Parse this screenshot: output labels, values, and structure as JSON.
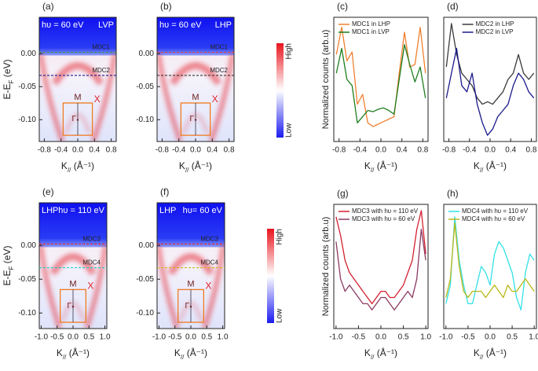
{
  "chart_data": [
    {
      "type": "heatmap",
      "panel": "(a)",
      "photon": "hυ = 60 eV",
      "polarization": "LVP",
      "xlabel": {
        "main": "K",
        "sub": "//",
        "unit": " (Å⁻¹)"
      },
      "ylabel": {
        "main": "E-E",
        "sub": "F",
        "unit": " (eV)"
      },
      "xlim": [
        -0.92,
        0.92
      ],
      "xticks": [
        -0.8,
        -0.4,
        {
          "value": 0,
          "label": "0.0"
        },
        0.4,
        0.8
      ],
      "ylim": [
        -0.133,
        0.055
      ],
      "yticks": [
        {
          "value": 0,
          "label": "0.00"
        },
        -0.05,
        {
          "value": -0.1,
          "label": "-0.10"
        }
      ],
      "cuts": [
        {
          "label": "MDC1",
          "value": 0.002,
          "color": "#3a9a3a"
        },
        {
          "label": "MDC2",
          "value": -0.033,
          "color": "#1a1a8c"
        }
      ],
      "symbols": [
        "M",
        "X",
        "Γ"
      ]
    },
    {
      "type": "heatmap",
      "panel": "(b)",
      "photon": "hυ = 60 eV",
      "polarization": "LHP",
      "xlabel": {
        "main": "K",
        "sub": "//",
        "unit": " (Å⁻¹)"
      },
      "xlim": [
        -0.92,
        0.92
      ],
      "xticks": [
        -0.8,
        -0.4,
        {
          "value": 0,
          "label": "0.0"
        },
        0.4,
        0.8
      ],
      "ylim": [
        -0.133,
        0.055
      ],
      "yticks": [
        {
          "value": 0,
          "label": "0.00"
        },
        -0.05,
        {
          "value": -0.1,
          "label": "-0.10"
        }
      ],
      "cuts": [
        {
          "label": "MDC1",
          "value": 0.002,
          "color": "#e04040"
        },
        {
          "label": "MDC2",
          "value": -0.033,
          "color": "#333333"
        }
      ],
      "symbols": [
        "M",
        "X",
        "Γ"
      ],
      "colorbar": [
        "High",
        "Low"
      ]
    },
    {
      "type": "line",
      "panel": "(c)",
      "xlabel": {
        "main": "K",
        "sub": "//",
        "unit": " (Å⁻¹)"
      },
      "ylabel": "Normalized counts (arb.u)",
      "xlim": [
        -0.9,
        0.9
      ],
      "xticks": [
        -0.8,
        -0.4,
        {
          "value": 0,
          "label": "0.0"
        },
        0.4,
        0.8
      ],
      "ylim": [
        0,
        1
      ],
      "legend": "upper left",
      "x": [
        -0.85,
        -0.75,
        -0.65,
        -0.55,
        -0.45,
        -0.35,
        -0.25,
        -0.15,
        -0.05,
        0.05,
        0.15,
        0.25,
        0.35,
        0.45,
        0.55,
        0.65,
        0.75,
        0.85
      ],
      "series": [
        {
          "name": "MDC1 in LHP",
          "color": "#f08030",
          "values": [
            0.7,
            0.92,
            0.65,
            0.72,
            0.3,
            0.38,
            0.15,
            0.12,
            0.14,
            0.16,
            0.18,
            0.2,
            0.55,
            0.88,
            0.6,
            0.62,
            0.92,
            0.55
          ]
        },
        {
          "name": "MDC1 in LVP",
          "color": "#1e7d1e",
          "values": [
            0.55,
            0.75,
            0.5,
            0.45,
            0.15,
            0.2,
            0.25,
            0.24,
            0.26,
            0.27,
            0.25,
            0.22,
            0.5,
            0.78,
            0.62,
            0.48,
            0.6,
            0.35
          ]
        }
      ]
    },
    {
      "type": "line",
      "panel": "(d)",
      "xlabel": {
        "main": "K",
        "sub": "//",
        "unit": " (Å⁻¹)"
      },
      "xlim": [
        -0.9,
        0.9
      ],
      "xticks": [
        -0.8,
        -0.4,
        {
          "value": 0,
          "label": "0.0"
        },
        0.4,
        0.8
      ],
      "ylim": [
        0,
        1
      ],
      "legend": "upper center",
      "x": [
        -0.85,
        -0.75,
        -0.65,
        -0.55,
        -0.45,
        -0.35,
        -0.25,
        -0.15,
        -0.05,
        0.05,
        0.15,
        0.25,
        0.35,
        0.45,
        0.55,
        0.65,
        0.75,
        0.85
      ],
      "series": [
        {
          "name": "MDC2 in LHP",
          "color": "#3a3a3a",
          "values": [
            0.6,
            0.95,
            0.7,
            0.55,
            0.5,
            0.45,
            0.35,
            0.3,
            0.32,
            0.3,
            0.35,
            0.4,
            0.5,
            0.55,
            0.7,
            0.55,
            0.5,
            0.55
          ]
        },
        {
          "name": "MDC2 in LVP",
          "color": "#1a1a8c",
          "values": [
            0.35,
            0.55,
            0.75,
            0.45,
            0.4,
            0.55,
            0.3,
            0.15,
            0.05,
            0.1,
            0.2,
            0.25,
            0.3,
            0.45,
            0.55,
            0.5,
            0.4,
            0.35
          ]
        }
      ]
    },
    {
      "type": "heatmap",
      "panel": "(e)",
      "photon": "hυ = 110 eV",
      "polarization": "LHP",
      "xlabel": {
        "main": "K",
        "sub": "//",
        "unit": " (Å⁻¹)"
      },
      "ylabel": {
        "main": "E-E",
        "sub": "F",
        "unit": " (eV)"
      },
      "xlim": [
        -1.06,
        1.06
      ],
      "xticks": [
        {
          "value": -1,
          "label": "-1.0"
        },
        -0.5,
        {
          "value": 0,
          "label": "0.0"
        },
        0.5,
        {
          "value": 1,
          "label": "1.0"
        }
      ],
      "ylim": [
        -0.123,
        0.063
      ],
      "yticks": [
        {
          "value": 0,
          "label": "0.00"
        },
        -0.05,
        {
          "value": -0.1,
          "label": "-0.10"
        }
      ],
      "cuts": [
        {
          "label": "MDC3",
          "value": 0.002,
          "color": "#e03030"
        },
        {
          "label": "MDC4",
          "value": -0.033,
          "color": "#22cccc"
        }
      ],
      "symbols": [
        "M",
        "X",
        "Γ"
      ]
    },
    {
      "type": "heatmap",
      "panel": "(f)",
      "photon": "hυ= 60 eV",
      "polarization": "LHP",
      "xlabel": {
        "main": "K",
        "sub": "//",
        "unit": " (Å⁻¹)"
      },
      "xlim": [
        -1.06,
        1.06
      ],
      "xticks": [
        {
          "value": -1,
          "label": "-1.0"
        },
        -0.5,
        {
          "value": 0,
          "label": "0.0"
        },
        0.5,
        {
          "value": 1,
          "label": "1.0"
        }
      ],
      "ylim": [
        -0.123,
        0.063
      ],
      "yticks": [
        {
          "value": 0,
          "label": "0.00"
        },
        -0.05,
        {
          "value": -0.1,
          "label": "-0.10"
        }
      ],
      "cuts": [
        {
          "label": "MDC3",
          "value": 0.002,
          "color": "#e03030"
        },
        {
          "label": "MDC4",
          "value": -0.033,
          "color": "#c8b820"
        }
      ],
      "symbols": [
        "M",
        "X",
        "Γ"
      ],
      "colorbar": [
        "High",
        "Low"
      ]
    },
    {
      "type": "line",
      "panel": "(g)",
      "xlabel": {
        "main": "K",
        "sub": "//",
        "unit": " (Å⁻¹)"
      },
      "ylabel": "Normalized counts (arb.u)",
      "xlim": [
        -1.05,
        1.05
      ],
      "xticks": [
        {
          "value": -1,
          "label": "-1.0"
        },
        -0.5,
        {
          "value": 0,
          "label": "0.0"
        },
        0.5,
        {
          "value": 1,
          "label": "1.0"
        }
      ],
      "ylim": [
        0,
        1
      ],
      "legend": "upper left",
      "x": [
        -1.0,
        -0.9,
        -0.8,
        -0.7,
        -0.6,
        -0.5,
        -0.4,
        -0.3,
        -0.2,
        -0.1,
        0,
        0.1,
        0.2,
        0.3,
        0.4,
        0.5,
        0.6,
        0.7,
        0.8,
        0.9,
        1.0
      ],
      "series": [
        {
          "name": "MDC3 with hυ = 110 eV",
          "color": "#d42030",
          "values": [
            0.9,
            0.75,
            0.55,
            0.45,
            0.4,
            0.35,
            0.3,
            0.25,
            0.2,
            0.25,
            0.3,
            0.3,
            0.25,
            0.25,
            0.3,
            0.35,
            0.45,
            0.55,
            0.8,
            0.95,
            0.6
          ]
        },
        {
          "name": "MDC3 with hυ = 60 eV",
          "color": "#8b3a62",
          "values": [
            0.7,
            0.4,
            0.3,
            0.35,
            0.3,
            0.25,
            0.2,
            0.2,
            0.15,
            0.2,
            0.25,
            0.25,
            0.2,
            0.15,
            0.2,
            0.25,
            0.3,
            0.25,
            0.4,
            0.8,
            0.55
          ]
        }
      ]
    },
    {
      "type": "line",
      "panel": "(h)",
      "xlabel": {
        "main": "K",
        "sub": "//",
        "unit": " (Å⁻¹)"
      },
      "xlim": [
        -1.05,
        1.05
      ],
      "xticks": [
        {
          "value": -1,
          "label": "-1.0"
        },
        -0.5,
        {
          "value": 0,
          "label": "0.0"
        },
        0.5,
        {
          "value": 1,
          "label": "1.0"
        }
      ],
      "ylim": [
        0,
        1
      ],
      "legend": "upper left",
      "x": [
        -1.0,
        -0.9,
        -0.8,
        -0.7,
        -0.6,
        -0.5,
        -0.4,
        -0.3,
        -0.2,
        -0.1,
        0,
        0.1,
        0.2,
        0.3,
        0.4,
        0.5,
        0.6,
        0.7,
        0.8,
        0.9,
        1.0
      ],
      "series": [
        {
          "name": "MDC4 with hυ = 110 eV",
          "color": "#33e0e8",
          "values": [
            0.2,
            0.35,
            0.9,
            0.55,
            0.35,
            0.2,
            0.2,
            0.35,
            0.5,
            0.45,
            0.35,
            0.6,
            0.7,
            0.65,
            0.55,
            0.45,
            0.25,
            0.15,
            0.45,
            0.6,
            0.55
          ]
        },
        {
          "name": "MDC4 with hυ = 60 eV",
          "color": "#b8b818",
          "values": [
            0.25,
            0.4,
            0.85,
            0.5,
            0.3,
            0.25,
            0.3,
            0.3,
            0.3,
            0.25,
            0.3,
            0.35,
            0.3,
            0.25,
            0.35,
            0.3,
            0.3,
            0.35,
            0.4,
            0.35,
            0.3
          ]
        }
      ]
    }
  ]
}
